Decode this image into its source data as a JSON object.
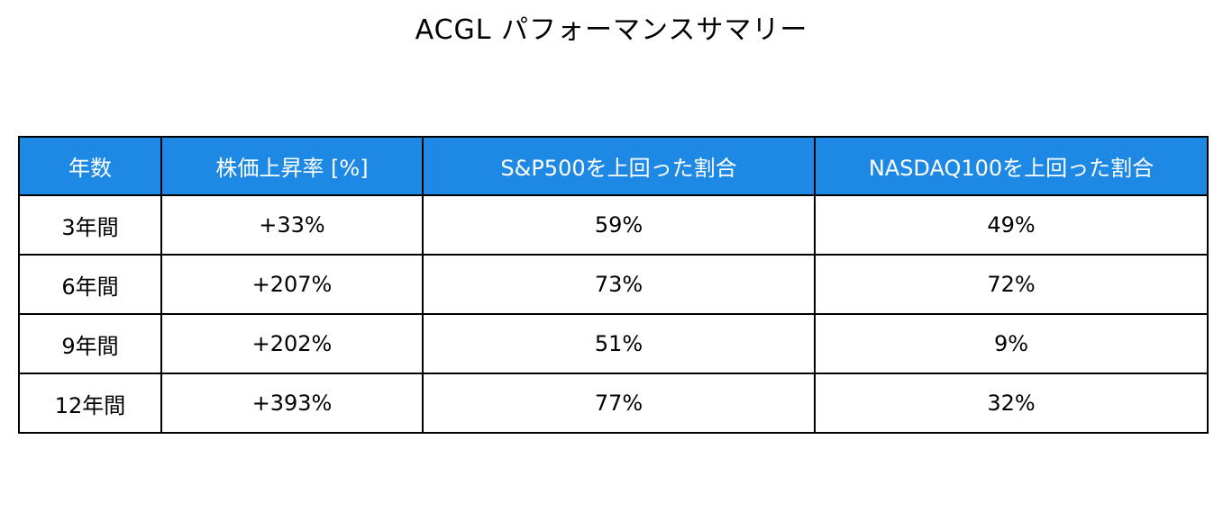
{
  "header_color": "#1e88e5",
  "chart_data": {
    "type": "table",
    "title": "ACGL パフォーマンスサマリー",
    "columns": [
      "年数",
      "株価上昇率 [%]",
      "S&P500を上回った割合",
      "NASDAQ100を上回った割合"
    ],
    "rows": [
      [
        "3年間",
        "+33%",
        "59%",
        "49%"
      ],
      [
        "6年間",
        "+207%",
        "73%",
        "72%"
      ],
      [
        "9年間",
        "+202%",
        "51%",
        "9%"
      ],
      [
        "12年間",
        "+393%",
        "77%",
        "32%"
      ]
    ]
  }
}
